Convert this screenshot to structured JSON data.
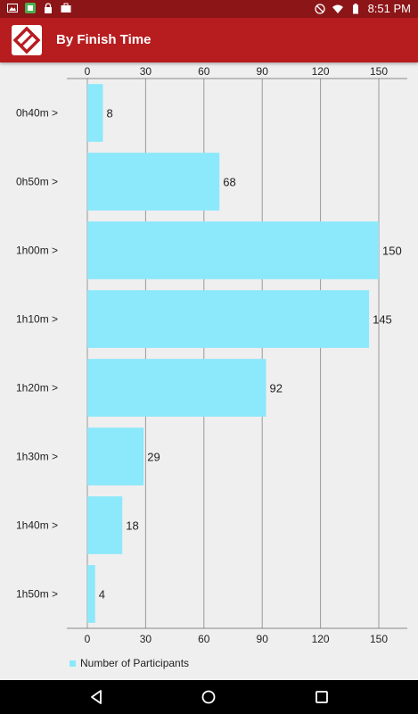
{
  "status_bar": {
    "left_icons": [
      "gallery-icon",
      "app-icon",
      "lock-icon",
      "briefcase-icon"
    ],
    "right_icons": [
      "do-not-disturb-icon",
      "wifi-icon",
      "battery-icon"
    ],
    "time": "8:51 PM"
  },
  "app_bar": {
    "logo_icon": "diamond-logo-icon",
    "title": "By Finish Time"
  },
  "chart_data": {
    "type": "bar",
    "orientation": "horizontal",
    "categories": [
      "0h40m >",
      "0h50m >",
      "1h00m >",
      "1h10m >",
      "1h20m >",
      "1h30m >",
      "1h40m >",
      "1h50m >"
    ],
    "series": [
      {
        "name": "Number of Participants",
        "values": [
          8,
          68,
          150,
          145,
          92,
          29,
          18,
          4
        ],
        "color": "#8ce8fb"
      }
    ],
    "xlim": [
      0,
      150
    ],
    "x_ticks": [
      0,
      30,
      60,
      90,
      120,
      150
    ],
    "grid": true,
    "legend_position": "bottom-left"
  },
  "colors": {
    "status_bar": "#8c1518",
    "app_bar": "#b71c1f",
    "bar": "#8ce8fb",
    "background": "#efefef"
  },
  "nav_bar": {
    "icons": [
      "back-icon",
      "home-icon",
      "recents-icon"
    ]
  }
}
